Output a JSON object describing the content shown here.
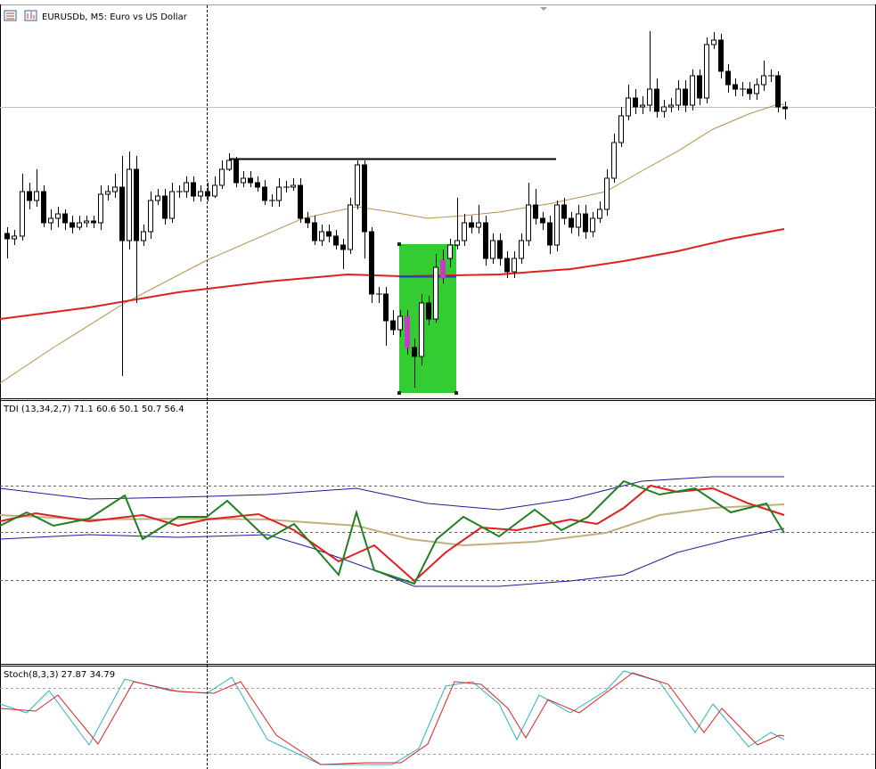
{
  "window": {
    "title": "EURUSDb, M5:  Euro vs US Dollar"
  },
  "indicators": [
    {
      "label": "TDI (13,34,2,7) 71.1 60.6 50.1 50.7 56.4"
    },
    {
      "label": "Stoch(8,3,3) 27.87 34.79"
    }
  ]
}
